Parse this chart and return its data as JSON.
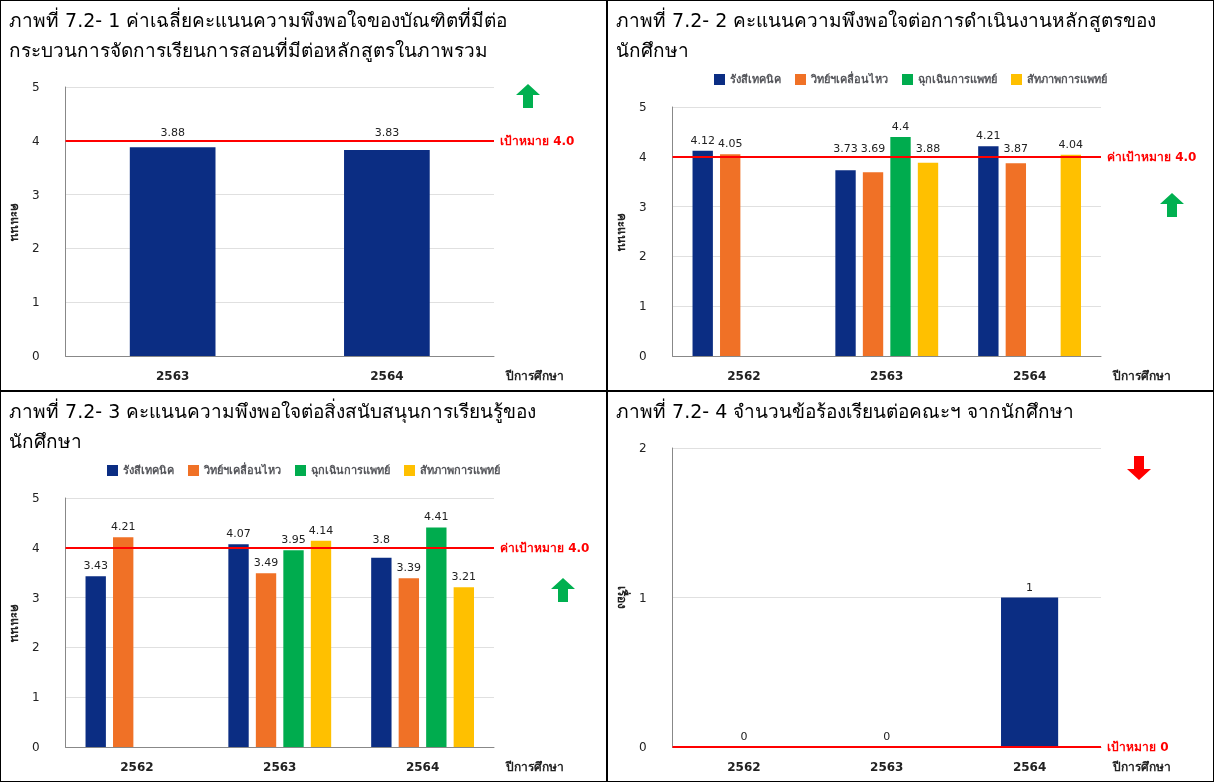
{
  "chart_data": [
    {
      "type": "bar",
      "title": "ภาพที่  7.2- 1 ค่าเฉลี่ยคะแนนความพึงพอใจของบัณฑิตที่มีต่อกระบวนการจัดการเรียนการสอนที่มีต่อหลักสูตรในภาพรวม",
      "xlabel": "ปีการศึกษา",
      "ylabel": "คะแนน",
      "categories": [
        "2563",
        "2564"
      ],
      "series": [
        {
          "color": "#0b2d83",
          "values": [
            3.88,
            3.83
          ]
        }
      ],
      "ylim": [
        0,
        5
      ],
      "yticks": [
        0,
        1,
        2,
        3,
        4,
        5
      ],
      "grid": "y",
      "legend": false,
      "data_labels": true,
      "ref_lines": [
        {
          "axis": "y",
          "value": 4.0,
          "label": "เป้าหมาย 4.0",
          "color": "#ff0000"
        }
      ]
    },
    {
      "type": "bar",
      "title": "ภาพที่ 7.2- 2 คะแนนความพึงพอใจต่อการดำเนินงานหลักสูตรของนักศึกษา",
      "xlabel": "ปีการศึกษา",
      "ylabel": "คะแนน",
      "categories": [
        "2562",
        "2563",
        "2564"
      ],
      "series": [
        {
          "name": "รังสีเทคนิค",
          "color": "#0b2d83",
          "values": [
            4.12,
            3.73,
            4.21
          ]
        },
        {
          "name": "วิทย์ฯเคลื่อนไหว",
          "color": "#f07126",
          "values": [
            4.05,
            3.69,
            3.87
          ]
        },
        {
          "name": "ฉุกเฉินการแพทย์",
          "color": "#00ac4e",
          "values": [
            null,
            4.4,
            null
          ]
        },
        {
          "name": "สัทภาพการแพทย์",
          "color": "#ffc000",
          "values": [
            null,
            3.88,
            4.04
          ]
        }
      ],
      "ylim": [
        0,
        5
      ],
      "yticks": [
        0,
        1,
        2,
        3,
        4,
        5
      ],
      "grid": "y",
      "legend": "top",
      "data_labels": true,
      "ref_lines": [
        {
          "axis": "y",
          "value": 4.0,
          "label": "ค่าเป้าหมาย 4.0",
          "color": "#ff0000"
        }
      ]
    },
    {
      "type": "bar",
      "title": "ภาพที่ 7.2- 3 คะแนนความพึงพอใจต่อสิ่งสนับสนุนการเรียนรู้ของนักศึกษา",
      "xlabel": "ปีการศึกษา",
      "ylabel": "คะแนน",
      "categories": [
        "2562",
        "2563",
        "2564"
      ],
      "series": [
        {
          "name": "รังสีเทคนิค",
          "color": "#0b2d83",
          "values": [
            3.43,
            4.07,
            3.8
          ]
        },
        {
          "name": "วิทย์ฯเคลื่อนไหว",
          "color": "#f07126",
          "values": [
            4.21,
            3.49,
            3.39
          ]
        },
        {
          "name": "ฉุกเฉินการแพทย์",
          "color": "#00ac4e",
          "values": [
            null,
            3.95,
            4.41
          ]
        },
        {
          "name": "สัทภาพการแพทย์",
          "color": "#ffc000",
          "values": [
            null,
            4.14,
            3.21
          ]
        }
      ],
      "ylim": [
        0,
        5
      ],
      "yticks": [
        0,
        1,
        2,
        3,
        4,
        5
      ],
      "grid": "y",
      "legend": "top",
      "data_labels": true,
      "ref_lines": [
        {
          "axis": "y",
          "value": 4.0,
          "label": "ค่าเป้าหมาย 4.0",
          "color": "#ff0000"
        }
      ]
    },
    {
      "type": "bar",
      "title": "ภาพที่ 7.2- 4 จำนวนข้อร้องเรียนต่อคณะฯ จากนักศึกษา",
      "xlabel": "ปีการศึกษา",
      "ylabel": "เรื่อง",
      "categories": [
        "2562",
        "2563",
        "2564"
      ],
      "series": [
        {
          "color": "#0b2d83",
          "values": [
            0,
            0,
            1
          ]
        }
      ],
      "ylim": [
        0,
        2
      ],
      "yticks": [
        0,
        1,
        2
      ],
      "grid": "y",
      "legend": false,
      "data_labels": true,
      "ref_lines": [
        {
          "axis": "y",
          "value": 0,
          "label": "เป้าหมาย 0",
          "color": "#ff0000"
        }
      ]
    }
  ]
}
